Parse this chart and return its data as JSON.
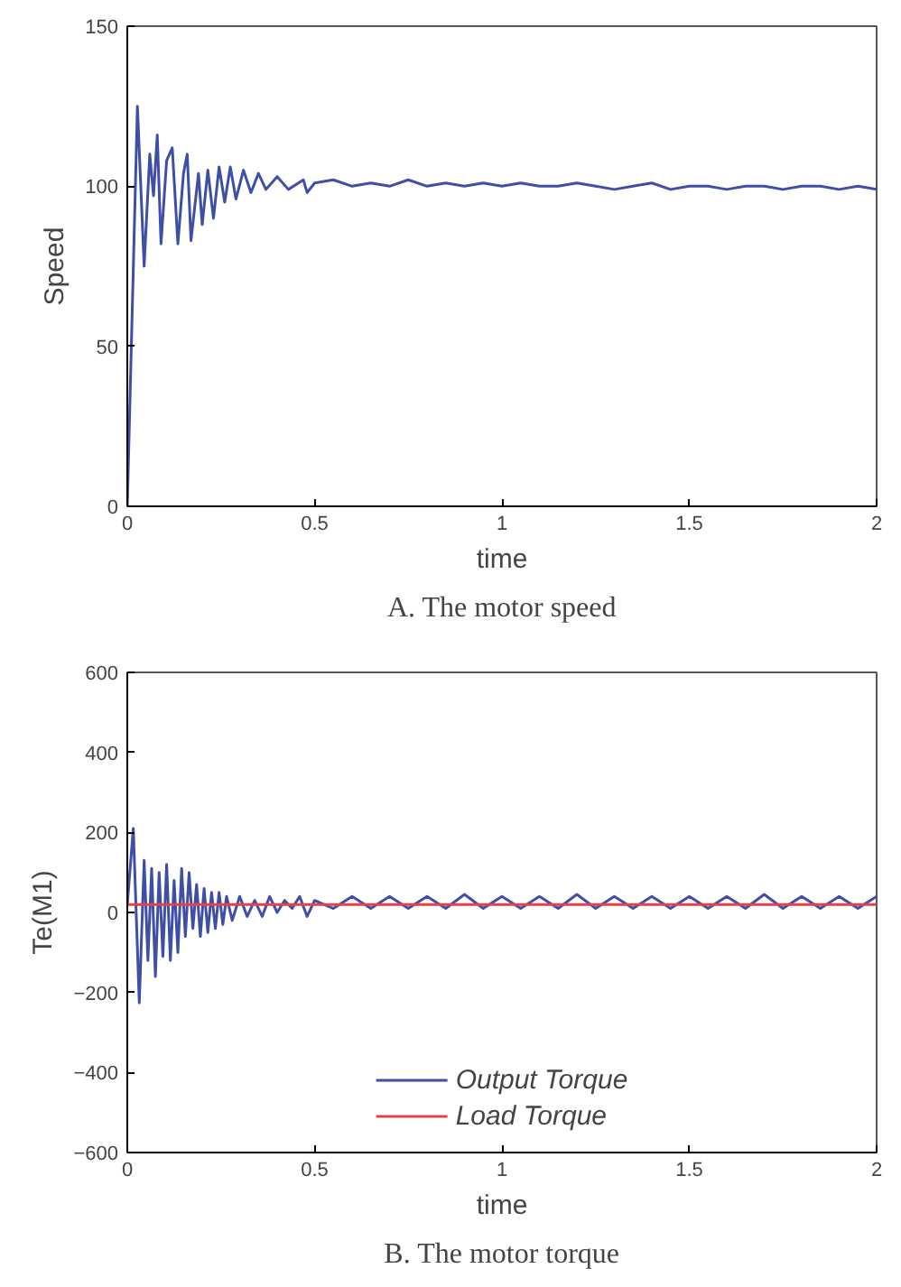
{
  "chart_data": [
    {
      "type": "line",
      "title": "A. The motor speed",
      "xlabel": "time",
      "ylabel": "Speed",
      "xlim": [
        0,
        2
      ],
      "ylim": [
        0,
        150
      ],
      "xticks": [
        0,
        0.5,
        1,
        1.5,
        2
      ],
      "yticks": [
        0,
        50,
        100,
        150
      ],
      "grid": false,
      "legend": false,
      "series": [
        {
          "color": "#3f4fa8",
          "x": [
            0,
            0.027,
            0.045,
            0.06,
            0.07,
            0.08,
            0.09,
            0.105,
            0.12,
            0.135,
            0.15,
            0.16,
            0.17,
            0.19,
            0.2,
            0.215,
            0.23,
            0.245,
            0.26,
            0.275,
            0.29,
            0.31,
            0.33,
            0.35,
            0.37,
            0.4,
            0.43,
            0.47,
            0.48,
            0.5,
            0.55,
            0.6,
            0.65,
            0.7,
            0.75,
            0.8,
            0.85,
            0.9,
            0.95,
            1.0,
            1.05,
            1.1,
            1.15,
            1.2,
            1.25,
            1.3,
            1.35,
            1.4,
            1.45,
            1.5,
            1.55,
            1.6,
            1.65,
            1.7,
            1.75,
            1.8,
            1.85,
            1.9,
            1.95,
            2.0
          ],
          "values": [
            0,
            125,
            75,
            110,
            97,
            116,
            82,
            108,
            112,
            82,
            104,
            110,
            83,
            104,
            88,
            105,
            90,
            106,
            95,
            106,
            96,
            105,
            98,
            104,
            99,
            103,
            99,
            102,
            98,
            101,
            102,
            100,
            101,
            100,
            102,
            100,
            101,
            100,
            101,
            100,
            101,
            100,
            100,
            101,
            100,
            99,
            100,
            101,
            99,
            100,
            100,
            99,
            100,
            100,
            99,
            100,
            100,
            99,
            100,
            99
          ]
        }
      ]
    },
    {
      "type": "line",
      "title": "B. The motor torque",
      "xlabel": "time",
      "ylabel": "Te(M1)",
      "xlim": [
        0,
        2
      ],
      "ylim": [
        -600,
        600
      ],
      "xticks": [
        0,
        0.5,
        1,
        1.5,
        2
      ],
      "yticks": [
        -600,
        -400,
        -200,
        0,
        200,
        400,
        600
      ],
      "grid": false,
      "legend": "bottom",
      "series": [
        {
          "name": "Output Torque",
          "color": "#3f4fa8",
          "x": [
            0,
            0.016,
            0.032,
            0.045,
            0.055,
            0.065,
            0.075,
            0.085,
            0.095,
            0.105,
            0.115,
            0.125,
            0.135,
            0.145,
            0.155,
            0.165,
            0.175,
            0.185,
            0.195,
            0.205,
            0.215,
            0.225,
            0.235,
            0.245,
            0.255,
            0.265,
            0.28,
            0.3,
            0.32,
            0.34,
            0.36,
            0.38,
            0.4,
            0.42,
            0.44,
            0.46,
            0.48,
            0.5,
            0.55,
            0.6,
            0.65,
            0.7,
            0.75,
            0.8,
            0.85,
            0.9,
            0.95,
            1.0,
            1.05,
            1.1,
            1.15,
            1.2,
            1.25,
            1.3,
            1.35,
            1.4,
            1.45,
            1.5,
            1.55,
            1.6,
            1.65,
            1.7,
            1.75,
            1.8,
            1.85,
            1.9,
            1.95,
            2.0
          ],
          "values": [
            20,
            210,
            -226,
            130,
            -120,
            110,
            -160,
            100,
            -110,
            120,
            -120,
            80,
            -100,
            110,
            -60,
            100,
            -40,
            70,
            -60,
            60,
            -50,
            50,
            -40,
            50,
            -30,
            40,
            -20,
            40,
            -10,
            30,
            -10,
            40,
            0,
            30,
            10,
            40,
            -10,
            30,
            10,
            40,
            10,
            40,
            10,
            40,
            10,
            45,
            10,
            40,
            10,
            40,
            10,
            45,
            10,
            40,
            10,
            40,
            10,
            40,
            10,
            40,
            10,
            45,
            10,
            40,
            10,
            40,
            10,
            40
          ]
        },
        {
          "name": "Load Torque",
          "color": "#e8404a",
          "x": [
            0,
            2
          ],
          "values": [
            20,
            20
          ]
        }
      ]
    }
  ]
}
